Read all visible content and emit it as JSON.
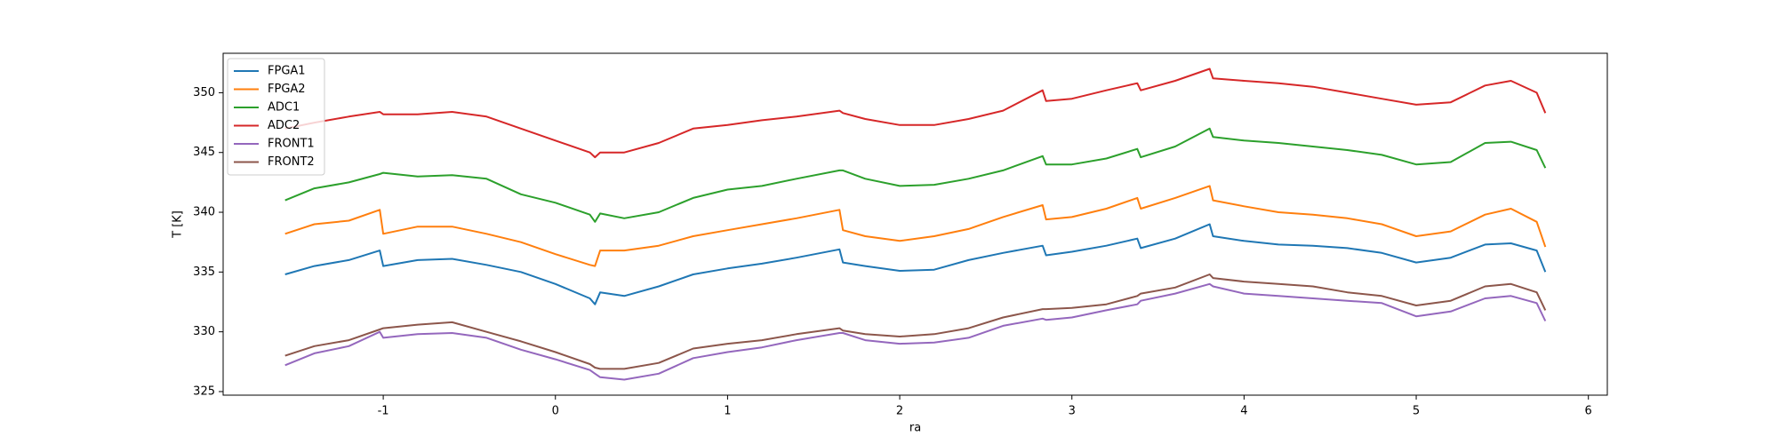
{
  "chart_data": {
    "type": "line",
    "x_label": "ra",
    "y_label": "T [K]",
    "x": [
      -1.57,
      -1.4,
      -1.2,
      -1.02,
      -1.0,
      -0.8,
      -0.6,
      -0.4,
      -0.2,
      0,
      0.2,
      0.23,
      0.26,
      0.4,
      0.6,
      0.8,
      1.0,
      1.2,
      1.4,
      1.65,
      1.67,
      1.8,
      2.0,
      2.2,
      2.4,
      2.6,
      2.83,
      2.85,
      3.0,
      3.2,
      3.38,
      3.4,
      3.6,
      3.8,
      3.82,
      4.0,
      4.2,
      4.4,
      4.6,
      4.8,
      5.0,
      5.2,
      5.4,
      5.55,
      5.7,
      5.75
    ],
    "series": [
      {
        "name": "FPGA1",
        "color": "#1f77b4",
        "values": [
          334.8,
          335.5,
          336,
          336.8,
          335.5,
          336,
          336.1,
          335.6,
          335,
          334,
          332.8,
          332.3,
          333.3,
          333,
          333.8,
          334.8,
          335.3,
          335.7,
          336.2,
          336.9,
          335.8,
          335.5,
          335.1,
          335.2,
          336,
          336.6,
          337.2,
          336.4,
          336.7,
          337.2,
          337.8,
          337,
          337.8,
          339,
          338,
          337.6,
          337.3,
          337.2,
          337,
          336.6,
          335.8,
          336.2,
          337.3,
          337.4,
          336.8,
          335
        ]
      },
      {
        "name": "FPGA2",
        "color": "#ff7f0e",
        "values": [
          338.2,
          339,
          339.3,
          340.2,
          338.2,
          338.8,
          338.8,
          338.2,
          337.5,
          336.5,
          335.6,
          335.5,
          336.8,
          336.8,
          337.2,
          338,
          338.5,
          339,
          339.5,
          340.2,
          338.5,
          338,
          337.6,
          338,
          338.6,
          339.6,
          340.6,
          339.4,
          339.6,
          340.3,
          341.2,
          340.3,
          341.2,
          342.2,
          341,
          340.5,
          340,
          339.8,
          339.5,
          339,
          338,
          338.4,
          339.8,
          340.3,
          339.2,
          337.1
        ]
      },
      {
        "name": "ADC1",
        "color": "#2ca02c",
        "values": [
          341,
          342,
          342.5,
          343.2,
          343.3,
          343,
          343.1,
          342.8,
          341.5,
          340.8,
          339.8,
          339.2,
          339.9,
          339.5,
          340,
          341.2,
          341.9,
          342.2,
          342.8,
          343.5,
          343.5,
          342.8,
          342.2,
          342.3,
          342.8,
          343.5,
          344.7,
          344,
          344,
          344.5,
          345.3,
          344.6,
          345.5,
          347,
          346.3,
          346,
          345.8,
          345.5,
          345.2,
          344.8,
          344,
          344.2,
          345.8,
          345.9,
          345.2,
          343.7
        ]
      },
      {
        "name": "ADC2",
        "color": "#d62728",
        "values": [
          347,
          347.5,
          348,
          348.4,
          348.2,
          348.2,
          348.4,
          348,
          347,
          346,
          345,
          344.6,
          345,
          345,
          345.8,
          347,
          347.3,
          347.7,
          348,
          348.5,
          348.3,
          347.8,
          347.3,
          347.3,
          347.8,
          348.5,
          350.2,
          349.3,
          349.5,
          350.2,
          350.8,
          350.2,
          351,
          352,
          351.2,
          351,
          350.8,
          350.5,
          350,
          349.5,
          349,
          349.2,
          350.6,
          351,
          350,
          348.3
        ]
      },
      {
        "name": "FRONT1",
        "color": "#9467bd",
        "values": [
          327.2,
          328.2,
          328.8,
          330,
          329.5,
          329.8,
          329.9,
          329.5,
          328.5,
          327.7,
          326.8,
          326.5,
          326.2,
          326,
          326.5,
          327.8,
          328.3,
          328.7,
          329.3,
          329.9,
          329.9,
          329.3,
          329,
          329.1,
          329.5,
          330.5,
          331.1,
          331,
          331.2,
          331.8,
          332.3,
          332.6,
          333.2,
          334,
          333.8,
          333.2,
          333,
          332.8,
          332.6,
          332.4,
          331.3,
          331.7,
          332.8,
          333,
          332.4,
          330.9
        ]
      },
      {
        "name": "FRONT2",
        "color": "#8c564b",
        "values": [
          328,
          328.8,
          329.3,
          330.2,
          330.3,
          330.6,
          330.8,
          330,
          329.2,
          328.3,
          327.3,
          327,
          326.9,
          326.9,
          327.4,
          328.6,
          329,
          329.3,
          329.8,
          330.3,
          330.1,
          329.8,
          329.6,
          329.8,
          330.3,
          331.2,
          331.9,
          331.9,
          332,
          332.3,
          333,
          333.2,
          333.7,
          334.8,
          334.5,
          334.2,
          334,
          333.8,
          333.3,
          333,
          332.2,
          332.6,
          333.8,
          334,
          333.3,
          331.8
        ]
      }
    ],
    "xlim": [
      -1.93,
      6.11
    ],
    "xticks": [
      -1,
      0,
      1,
      2,
      3,
      4,
      5,
      6
    ],
    "ylim": [
      324.7,
      353.3
    ],
    "yticks": [
      325,
      330,
      335,
      340,
      345,
      350
    ],
    "legend": "upper left",
    "grid": false
  }
}
